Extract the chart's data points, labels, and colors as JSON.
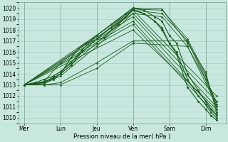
{
  "xlabel": "Pression niveau de la mer( hPa )",
  "background_color": "#c8e8df",
  "grid_major_color": "#a8cec8",
  "grid_minor_color": "#b8d8d0",
  "line_color": "#1a5c1a",
  "ylim": [
    1009.5,
    1020.5
  ],
  "yticks": [
    1010,
    1011,
    1012,
    1013,
    1014,
    1015,
    1016,
    1017,
    1018,
    1019,
    1020
  ],
  "day_labels": [
    "Mer",
    "Lun",
    "Jeu",
    "Ven",
    "Sam",
    "Dim"
  ],
  "day_positions": [
    0,
    1,
    2,
    3,
    4,
    5
  ],
  "xlim": [
    -0.15,
    5.55
  ],
  "lines": [
    {
      "x": [
        0.0,
        0.55,
        1.0,
        2.0,
        3.0,
        3.8,
        4.5,
        5.0,
        5.3
      ],
      "y": [
        1013.0,
        1013.2,
        1014.0,
        1016.8,
        1019.8,
        1019.5,
        1017.0,
        1013.8,
        1011.2
      ]
    },
    {
      "x": [
        0.0,
        0.55,
        1.0,
        2.0,
        3.0,
        3.8,
        4.5,
        5.0,
        5.3
      ],
      "y": [
        1013.0,
        1013.1,
        1013.8,
        1016.5,
        1019.5,
        1019.2,
        1016.5,
        1013.5,
        1011.0
      ]
    },
    {
      "x": [
        0.0,
        0.55,
        1.0,
        2.0,
        3.0,
        3.8,
        4.5,
        5.0,
        5.3
      ],
      "y": [
        1013.0,
        1013.2,
        1014.2,
        1017.2,
        1019.9,
        1019.8,
        1017.2,
        1014.0,
        1010.8
      ]
    },
    {
      "x": [
        0.0,
        0.55,
        1.0,
        2.0,
        3.0,
        3.8,
        4.5,
        5.0,
        5.3
      ],
      "y": [
        1013.0,
        1013.3,
        1015.0,
        1017.5,
        1020.0,
        1019.9,
        1016.8,
        1014.2,
        1010.5
      ]
    },
    {
      "x": [
        0.0,
        0.55,
        1.0,
        2.0,
        3.0,
        4.5,
        5.3
      ],
      "y": [
        1013.0,
        1013.0,
        1013.2,
        1015.0,
        1017.0,
        1017.0,
        1011.5
      ]
    },
    {
      "x": [
        0.0,
        0.55,
        1.0,
        2.0,
        3.0,
        4.5,
        5.3
      ],
      "y": [
        1013.0,
        1013.0,
        1013.0,
        1014.5,
        1016.8,
        1016.5,
        1011.2
      ]
    },
    {
      "x": [
        0.0,
        3.0,
        5.3
      ],
      "y": [
        1013.0,
        1019.8,
        1012.0
      ]
    },
    {
      "x": [
        0.0,
        3.0,
        5.3
      ],
      "y": [
        1013.0,
        1019.5,
        1011.5
      ]
    },
    {
      "x": [
        0.0,
        3.0,
        5.3
      ],
      "y": [
        1013.0,
        1019.2,
        1011.0
      ]
    },
    {
      "x": [
        0.0,
        3.0,
        5.3
      ],
      "y": [
        1013.0,
        1018.8,
        1010.5
      ]
    },
    {
      "x": [
        0.0,
        3.0,
        5.3
      ],
      "y": [
        1013.0,
        1018.5,
        1010.2
      ]
    },
    {
      "x": [
        0.0,
        3.0,
        5.3
      ],
      "y": [
        1013.0,
        1018.0,
        1010.8
      ]
    }
  ],
  "dense_lines": [
    {
      "x": [
        0.0,
        0.3,
        0.55,
        0.8,
        1.0,
        1.3,
        1.6,
        2.0,
        2.4,
        2.8,
        3.0,
        3.3,
        3.6,
        3.8,
        4.0,
        4.2,
        4.5,
        4.8,
        5.0,
        5.15,
        5.3
      ],
      "y": [
        1013.0,
        1013.2,
        1013.5,
        1013.8,
        1014.2,
        1015.0,
        1016.2,
        1017.5,
        1018.5,
        1019.5,
        1020.0,
        1019.8,
        1019.2,
        1018.8,
        1017.5,
        1016.8,
        1014.0,
        1012.5,
        1011.5,
        1010.8,
        1010.3
      ]
    },
    {
      "x": [
        0.0,
        0.3,
        0.55,
        0.8,
        1.0,
        1.3,
        1.6,
        2.0,
        2.4,
        2.8,
        3.0,
        3.3,
        3.6,
        3.8,
        4.0,
        4.2,
        4.5,
        4.8,
        5.0,
        5.15,
        5.3
      ],
      "y": [
        1013.0,
        1013.1,
        1013.3,
        1013.6,
        1014.0,
        1014.8,
        1016.0,
        1017.2,
        1018.2,
        1019.2,
        1019.8,
        1019.5,
        1018.8,
        1018.2,
        1016.8,
        1016.0,
        1013.5,
        1012.0,
        1011.2,
        1010.5,
        1010.0
      ]
    },
    {
      "x": [
        0.0,
        0.3,
        0.55,
        0.8,
        1.0,
        1.3,
        1.5,
        1.7,
        1.9,
        2.2,
        2.6,
        3.0,
        3.3,
        3.6,
        3.8,
        4.0,
        4.2,
        4.5,
        4.8,
        5.0,
        5.15,
        5.3
      ],
      "y": [
        1013.0,
        1013.1,
        1013.2,
        1013.5,
        1014.0,
        1015.5,
        1016.3,
        1016.8,
        1017.0,
        1017.3,
        1018.5,
        1019.8,
        1019.5,
        1018.8,
        1018.0,
        1016.8,
        1015.8,
        1012.8,
        1011.5,
        1010.8,
        1010.2,
        1009.8
      ]
    }
  ]
}
